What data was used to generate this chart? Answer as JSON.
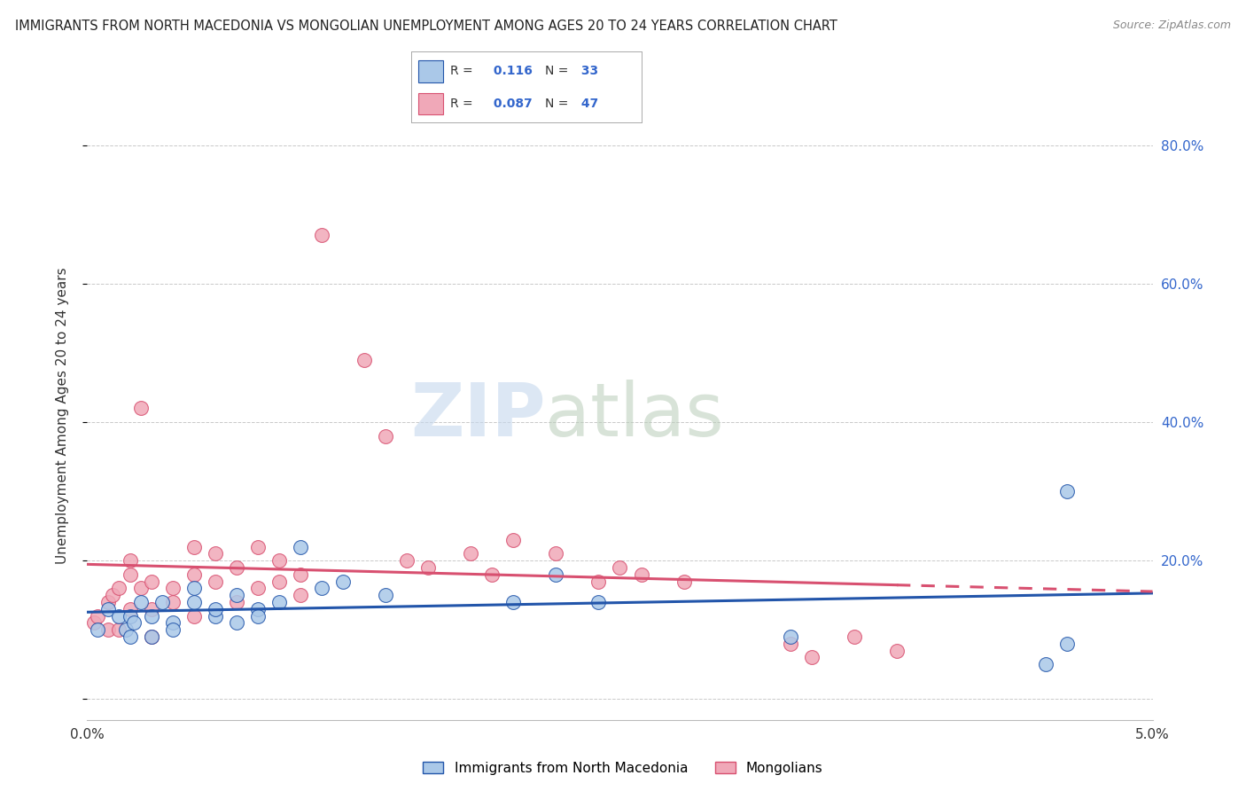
{
  "title": "IMMIGRANTS FROM NORTH MACEDONIA VS MONGOLIAN UNEMPLOYMENT AMONG AGES 20 TO 24 YEARS CORRELATION CHART",
  "source": "Source: ZipAtlas.com",
  "ylabel": "Unemployment Among Ages 20 to 24 years",
  "yticks": [
    0.0,
    0.2,
    0.4,
    0.6,
    0.8
  ],
  "ytick_labels": [
    "",
    "20.0%",
    "40.0%",
    "60.0%",
    "80.0%"
  ],
  "xlim": [
    0.0,
    0.05
  ],
  "ylim": [
    -0.03,
    0.85
  ],
  "series1_name": "Immigrants from North Macedonia",
  "series1_color": "#aac8e8",
  "series1_R": "0.116",
  "series1_N": "33",
  "series1_line_color": "#2255aa",
  "series2_name": "Mongolians",
  "series2_color": "#f0a8b8",
  "series2_R": "0.087",
  "series2_N": "47",
  "series2_line_color": "#d85070",
  "background_color": "#ffffff",
  "grid_color": "#bbbbbb",
  "title_color": "#222222",
  "source_color": "#888888",
  "series1_x": [
    0.0005,
    0.001,
    0.0015,
    0.0018,
    0.002,
    0.002,
    0.0022,
    0.0025,
    0.003,
    0.003,
    0.0035,
    0.004,
    0.004,
    0.005,
    0.005,
    0.006,
    0.006,
    0.007,
    0.007,
    0.008,
    0.008,
    0.009,
    0.01,
    0.011,
    0.012,
    0.014,
    0.02,
    0.022,
    0.024,
    0.033,
    0.045,
    0.046,
    0.046
  ],
  "series1_y": [
    0.1,
    0.13,
    0.12,
    0.1,
    0.09,
    0.12,
    0.11,
    0.14,
    0.09,
    0.12,
    0.14,
    0.11,
    0.1,
    0.16,
    0.14,
    0.12,
    0.13,
    0.11,
    0.15,
    0.13,
    0.12,
    0.14,
    0.22,
    0.16,
    0.17,
    0.15,
    0.14,
    0.18,
    0.14,
    0.09,
    0.05,
    0.3,
    0.08
  ],
  "series2_x": [
    0.0003,
    0.0005,
    0.001,
    0.001,
    0.0012,
    0.0015,
    0.0015,
    0.002,
    0.002,
    0.002,
    0.0025,
    0.003,
    0.003,
    0.003,
    0.004,
    0.004,
    0.005,
    0.005,
    0.005,
    0.006,
    0.006,
    0.007,
    0.007,
    0.008,
    0.008,
    0.009,
    0.009,
    0.01,
    0.01,
    0.011,
    0.0025,
    0.013,
    0.014,
    0.015,
    0.016,
    0.018,
    0.019,
    0.02,
    0.022,
    0.024,
    0.025,
    0.026,
    0.028,
    0.033,
    0.034,
    0.036,
    0.038
  ],
  "series2_y": [
    0.11,
    0.12,
    0.14,
    0.1,
    0.15,
    0.16,
    0.1,
    0.18,
    0.13,
    0.2,
    0.16,
    0.17,
    0.13,
    0.09,
    0.14,
    0.16,
    0.18,
    0.12,
    0.22,
    0.17,
    0.21,
    0.14,
    0.19,
    0.22,
    0.16,
    0.17,
    0.2,
    0.15,
    0.18,
    0.67,
    0.42,
    0.49,
    0.38,
    0.2,
    0.19,
    0.21,
    0.18,
    0.23,
    0.21,
    0.17,
    0.19,
    0.18,
    0.17,
    0.08,
    0.06,
    0.09,
    0.07
  ]
}
